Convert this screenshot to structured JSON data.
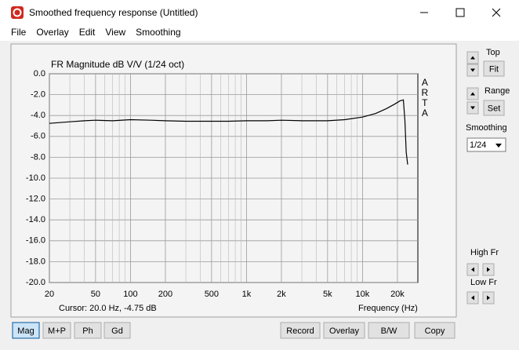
{
  "window_title": "Smoothed frequency response (Untitled)",
  "menu": [
    "File",
    "Overlay",
    "Edit",
    "View",
    "Smoothing"
  ],
  "chart_data": {
    "type": "line",
    "title": "FR Magnitude dB V/V (1/24 oct)",
    "side_label": "ARTA",
    "x_label": "Frequency (Hz)",
    "cursor": "Cursor: 20.0 Hz, -4.75 dB",
    "log_x": true,
    "grid": true,
    "x": [
      20,
      30,
      40,
      50,
      70,
      100,
      150,
      200,
      300,
      500,
      700,
      1000,
      1500,
      2000,
      3000,
      5000,
      7000,
      10000,
      13000,
      16000,
      19000,
      21000,
      22500,
      23200,
      23800,
      24500
    ],
    "series": [
      {
        "color": "#000000",
        "values": [
          -4.75,
          -4.6,
          -4.5,
          -4.45,
          -4.5,
          -4.4,
          -4.45,
          -4.5,
          -4.55,
          -4.55,
          -4.55,
          -4.5,
          -4.5,
          -4.45,
          -4.5,
          -4.5,
          -4.4,
          -4.15,
          -3.8,
          -3.35,
          -2.9,
          -2.6,
          -2.5,
          -4.5,
          -7.5,
          -8.7
        ]
      }
    ],
    "xlim": [
      20,
      30000
    ],
    "ylim": [
      -20,
      0
    ],
    "xticks": [
      20,
      50,
      100,
      200,
      500,
      {
        "value": 1000,
        "label": "1k"
      },
      {
        "value": 2000,
        "label": "2k"
      },
      {
        "value": 5000,
        "label": "5k"
      },
      {
        "value": 10000,
        "label": "10k"
      },
      {
        "value": 20000,
        "label": "20k"
      }
    ],
    "xminor": [
      30,
      40,
      60,
      70,
      80,
      90,
      300,
      400,
      600,
      700,
      800,
      900,
      3000,
      4000,
      6000,
      7000,
      8000,
      9000,
      30000
    ],
    "yticks": [
      {
        "value": 0,
        "label": "0.0"
      },
      {
        "value": -2,
        "label": "-2.0"
      },
      {
        "value": -4,
        "label": "-4.0"
      },
      {
        "value": -6,
        "label": "-6.0"
      },
      {
        "value": -8,
        "label": "-8.0"
      },
      {
        "value": -10,
        "label": "-10.0"
      },
      {
        "value": -12,
        "label": "-12.0"
      },
      {
        "value": -14,
        "label": "-14.0"
      },
      {
        "value": -16,
        "label": "-16.0"
      },
      {
        "value": -18,
        "label": "-18.0"
      },
      {
        "value": -20,
        "label": "-20.0"
      }
    ]
  },
  "side_panel": {
    "top_label": "Top",
    "fit": "Fit",
    "range_label": "Range",
    "set": "Set",
    "smoothing_label": "Smoothing",
    "smoothing_value": "1/24",
    "high_fr_label": "High Fr",
    "low_fr_label": "Low Fr"
  },
  "bottom_buttons": [
    "Mag",
    "M+P",
    "Ph",
    "Gd",
    "Record",
    "Overlay",
    "B/W",
    "Copy"
  ]
}
